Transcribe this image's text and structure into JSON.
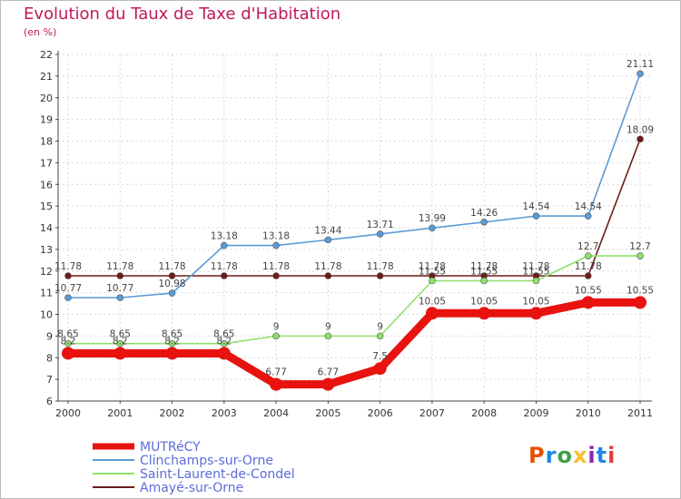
{
  "header": {
    "title": "Evolution du Taux de Taxe d'Habitation",
    "subtitle": "(en %)"
  },
  "logo": {
    "text": "Proxiti",
    "colors": [
      "#e65100",
      "#1e88e5",
      "#43a047",
      "#fbc02d",
      "#8e24aa",
      "#1e88e5",
      "#e53935"
    ]
  },
  "chart_data": {
    "type": "line",
    "title": "Evolution du Taux de Taxe d'Habitation",
    "subtitle": "(en %)",
    "xlabel": "",
    "ylabel": "",
    "x": [
      "2000",
      "2001",
      "2002",
      "2003",
      "2004",
      "2005",
      "2006",
      "2007",
      "2008",
      "2009",
      "2010",
      "2011"
    ],
    "ylim": [
      6,
      22
    ],
    "yticks": [
      6,
      7,
      8,
      9,
      10,
      11,
      12,
      13,
      14,
      15,
      16,
      17,
      18,
      19,
      20,
      21,
      22
    ],
    "grid": true,
    "legend_position": "bottom-left",
    "series": [
      {
        "name": "Amayé-sur-Orne",
        "color": "#6d1b1b",
        "width": 1.6,
        "marker": 3.5,
        "values": [
          11.78,
          11.78,
          11.78,
          11.78,
          11.78,
          11.78,
          11.78,
          11.78,
          11.78,
          11.78,
          11.78,
          18.09
        ],
        "labels": [
          "11.78",
          "11.78",
          "11.78",
          "11.78",
          "11.78",
          "11.78",
          "11.78",
          "11.78",
          "11.78",
          "11.78",
          "11.78",
          "18.09"
        ]
      },
      {
        "name": "Saint-Laurent-de-Condel",
        "color": "#8ee06a",
        "width": 1.6,
        "marker": 3.5,
        "values": [
          8.65,
          8.65,
          8.65,
          8.65,
          9,
          9,
          9,
          11.55,
          11.55,
          11.55,
          12.7,
          12.7
        ],
        "labels": [
          "8.65",
          "8.65",
          "8.65",
          "8.65",
          "9",
          "9",
          "9",
          "11.55",
          "11.55",
          "11.55",
          "12.7",
          "12.7"
        ]
      },
      {
        "name": "Clinchamps-sur-Orne",
        "color": "#5b9bd5",
        "width": 1.6,
        "marker": 3.5,
        "values": [
          10.77,
          10.77,
          10.98,
          13.18,
          13.18,
          13.44,
          13.71,
          13.99,
          14.26,
          14.54,
          14.54,
          21.11
        ],
        "labels": [
          "10.77",
          "10.77",
          "10.98",
          "13.18",
          "13.18",
          "13.44",
          "13.71",
          "13.99",
          "14.26",
          "14.54",
          "14.54",
          "21.11"
        ]
      },
      {
        "name": "MUTRéCY",
        "color": "#e8130f",
        "width": 9,
        "marker": 7,
        "values": [
          8.2,
          8.2,
          8.2,
          8.2,
          6.77,
          6.77,
          7.5,
          10.05,
          10.05,
          10.05,
          10.55,
          10.55
        ],
        "labels": [
          "8.2",
          "8.2",
          "8.2",
          "8.2",
          "6.77",
          "6.77",
          "7.5",
          "10.05",
          "10.05",
          "10.05",
          "10.55",
          "10.55"
        ]
      }
    ],
    "legend": [
      "MUTRéCY",
      "Clinchamps-sur-Orne",
      "Saint-Laurent-de-Condel",
      "Amayé-sur-Orne"
    ]
  }
}
